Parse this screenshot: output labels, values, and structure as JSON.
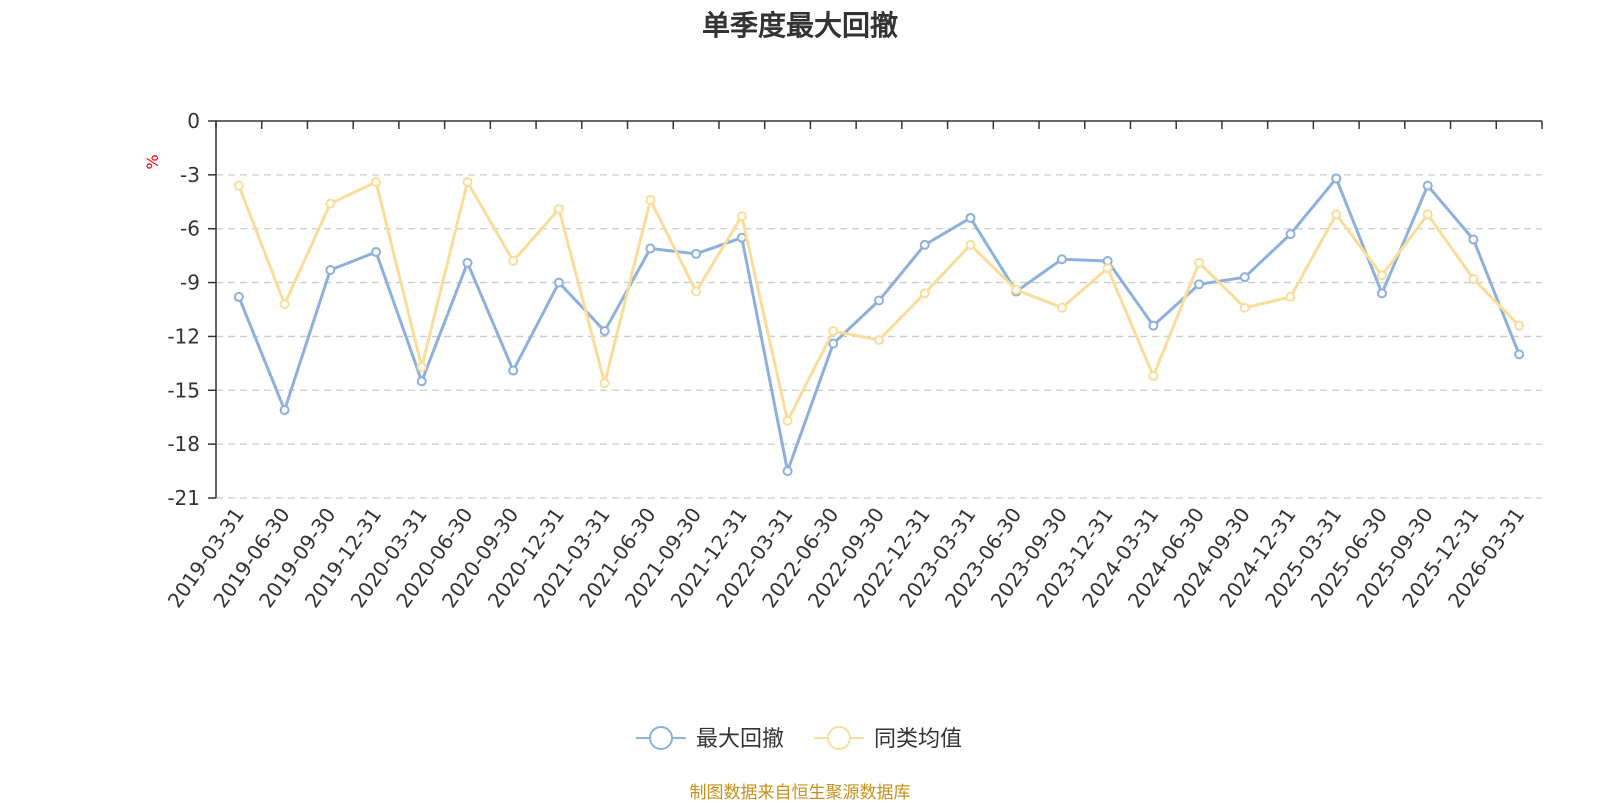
{
  "chart_data": {
    "type": "line",
    "title": "单季度最大回撤",
    "ylabel": "%",
    "ylim": [
      -21,
      0
    ],
    "yticks": [
      0,
      -3,
      -6,
      -9,
      -12,
      -15,
      -18,
      -21
    ],
    "grid": true,
    "legend_position": "bottom-center",
    "categories": [
      "2019-03-31",
      "2019-06-30",
      "2019-09-30",
      "2019-12-31",
      "2020-03-31",
      "2020-06-30",
      "2020-09-30",
      "2020-12-31",
      "2021-03-31",
      "2021-06-30",
      "2021-09-30",
      "2021-12-31",
      "2022-03-31",
      "2022-06-30",
      "2022-09-30",
      "2022-12-31",
      "2023-03-31",
      "2023-06-30",
      "2023-09-30",
      "2023-12-31",
      "2024-03-31",
      "2024-06-30",
      "2024-09-30",
      "2024-12-31",
      "2025-03-31",
      "2025-06-30",
      "2025-09-30",
      "2025-12-31",
      "2026-03-31"
    ],
    "series": [
      {
        "name": "最大回撤",
        "color": "#8eb0dc",
        "values": [
          -9.8,
          -16.1,
          -8.3,
          -7.3,
          -14.5,
          -7.9,
          -13.9,
          -9.0,
          -11.7,
          -7.1,
          -7.4,
          -6.5,
          -19.5,
          -12.4,
          -10.0,
          -6.9,
          -5.4,
          -9.5,
          -7.7,
          -7.8,
          -11.4,
          -9.1,
          -8.7,
          -6.3,
          -3.2,
          -9.6,
          -3.6,
          -6.6,
          -13.0
        ]
      },
      {
        "name": "同类均值",
        "color": "#fadd9b",
        "values": [
          -3.6,
          -10.2,
          -4.6,
          -3.4,
          -13.7,
          -3.4,
          -7.8,
          -4.9,
          -14.6,
          -4.4,
          -9.5,
          -5.3,
          -16.7,
          -11.7,
          -12.2,
          -9.6,
          -6.9,
          -9.4,
          -10.4,
          -8.2,
          -14.2,
          -7.9,
          -10.4,
          -9.8,
          -5.2,
          -8.6,
          -5.2,
          -8.8,
          -11.4
        ]
      }
    ]
  },
  "footer": {
    "source": "制图数据来自恒生聚源数据库"
  }
}
